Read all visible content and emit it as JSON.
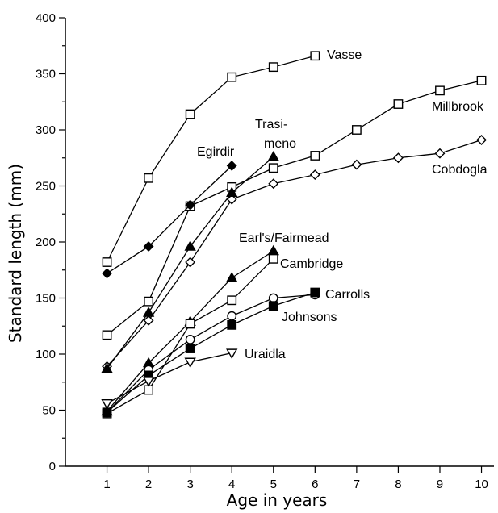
{
  "chart_data": {
    "type": "line",
    "title": "",
    "xlabel": "Age in years",
    "ylabel": "Standard length (mm)",
    "xlim": [
      0,
      10.3
    ],
    "ylim": [
      0,
      400
    ],
    "x_ticks": [
      1,
      2,
      3,
      4,
      5,
      6,
      7,
      8,
      9,
      10
    ],
    "y_ticks": [
      0,
      50,
      100,
      150,
      200,
      250,
      300,
      350,
      400
    ],
    "grid": false,
    "legend": "none (series labelled directly on the plot)",
    "series": [
      {
        "name": "Vasse",
        "marker": "square-open",
        "x": [
          1,
          2,
          3,
          4,
          5,
          6
        ],
        "y": [
          182,
          257,
          314,
          347,
          356,
          366
        ]
      },
      {
        "name": "Millbrook",
        "marker": "square-open",
        "x": [
          1,
          2,
          3,
          4,
          5,
          6,
          7,
          8,
          9,
          10
        ],
        "y": [
          117,
          147,
          232,
          249,
          266,
          277,
          300,
          323,
          335,
          344
        ]
      },
      {
        "name": "Cobdogla",
        "marker": "diamond-open",
        "x": [
          1,
          2,
          3,
          4,
          5,
          6,
          7,
          8,
          9,
          10
        ],
        "y": [
          89,
          130,
          182,
          238,
          252,
          260,
          269,
          275,
          279,
          291
        ]
      },
      {
        "name": "Egirdir",
        "marker": "diamond-filled",
        "x": [
          1,
          2,
          3,
          4
        ],
        "y": [
          172,
          196,
          233,
          268
        ]
      },
      {
        "name": "Trasi-\nmeno",
        "marker": "triangle-filled",
        "x": [
          1,
          2,
          3,
          4,
          5
        ],
        "y": [
          87,
          137,
          196,
          244,
          276
        ]
      },
      {
        "name": "Earl's/Fairmead",
        "marker": "triangle-filled",
        "x": [
          1,
          2,
          3,
          4,
          5
        ],
        "y": [
          49,
          92,
          129,
          168,
          192
        ]
      },
      {
        "name": "Cambridge",
        "marker": "square-open",
        "x": [
          1,
          2,
          3,
          4,
          5
        ],
        "y": [
          47,
          68,
          127,
          148,
          185
        ]
      },
      {
        "name": "Carrolls",
        "marker": "circle-open",
        "x": [
          1,
          2,
          3,
          4,
          5,
          6
        ],
        "y": [
          48,
          86,
          113,
          134,
          150,
          153
        ]
      },
      {
        "name": "Johnsons",
        "marker": "square-filled",
        "x": [
          1,
          2,
          3,
          4,
          5,
          6
        ],
        "y": [
          48,
          81,
          105,
          126,
          143,
          155
        ]
      },
      {
        "name": "Uraidla",
        "marker": "triangle-down-open",
        "x": [
          1,
          2,
          3,
          4
        ],
        "y": [
          56,
          76,
          93,
          101
        ]
      }
    ],
    "labels": [
      {
        "text": "Vasse",
        "series": "Vasse"
      },
      {
        "text": "Millbrook",
        "series": "Millbrook"
      },
      {
        "text": "Cobdogla",
        "series": "Cobdogla"
      },
      {
        "text": "Egirdir",
        "series": "Egirdir"
      },
      {
        "text": "Trasi-",
        "series": "Trasimeno"
      },
      {
        "text": "meno",
        "series": "Trasimeno"
      },
      {
        "text": "Earl's/Fairmead",
        "series": "Earl's/Fairmead"
      },
      {
        "text": "Cambridge",
        "series": "Cambridge"
      },
      {
        "text": "Carrolls",
        "series": "Carrolls"
      },
      {
        "text": "Johnsons",
        "series": "Johnsons"
      },
      {
        "text": "Uraidla",
        "series": "Uraidla"
      }
    ]
  }
}
